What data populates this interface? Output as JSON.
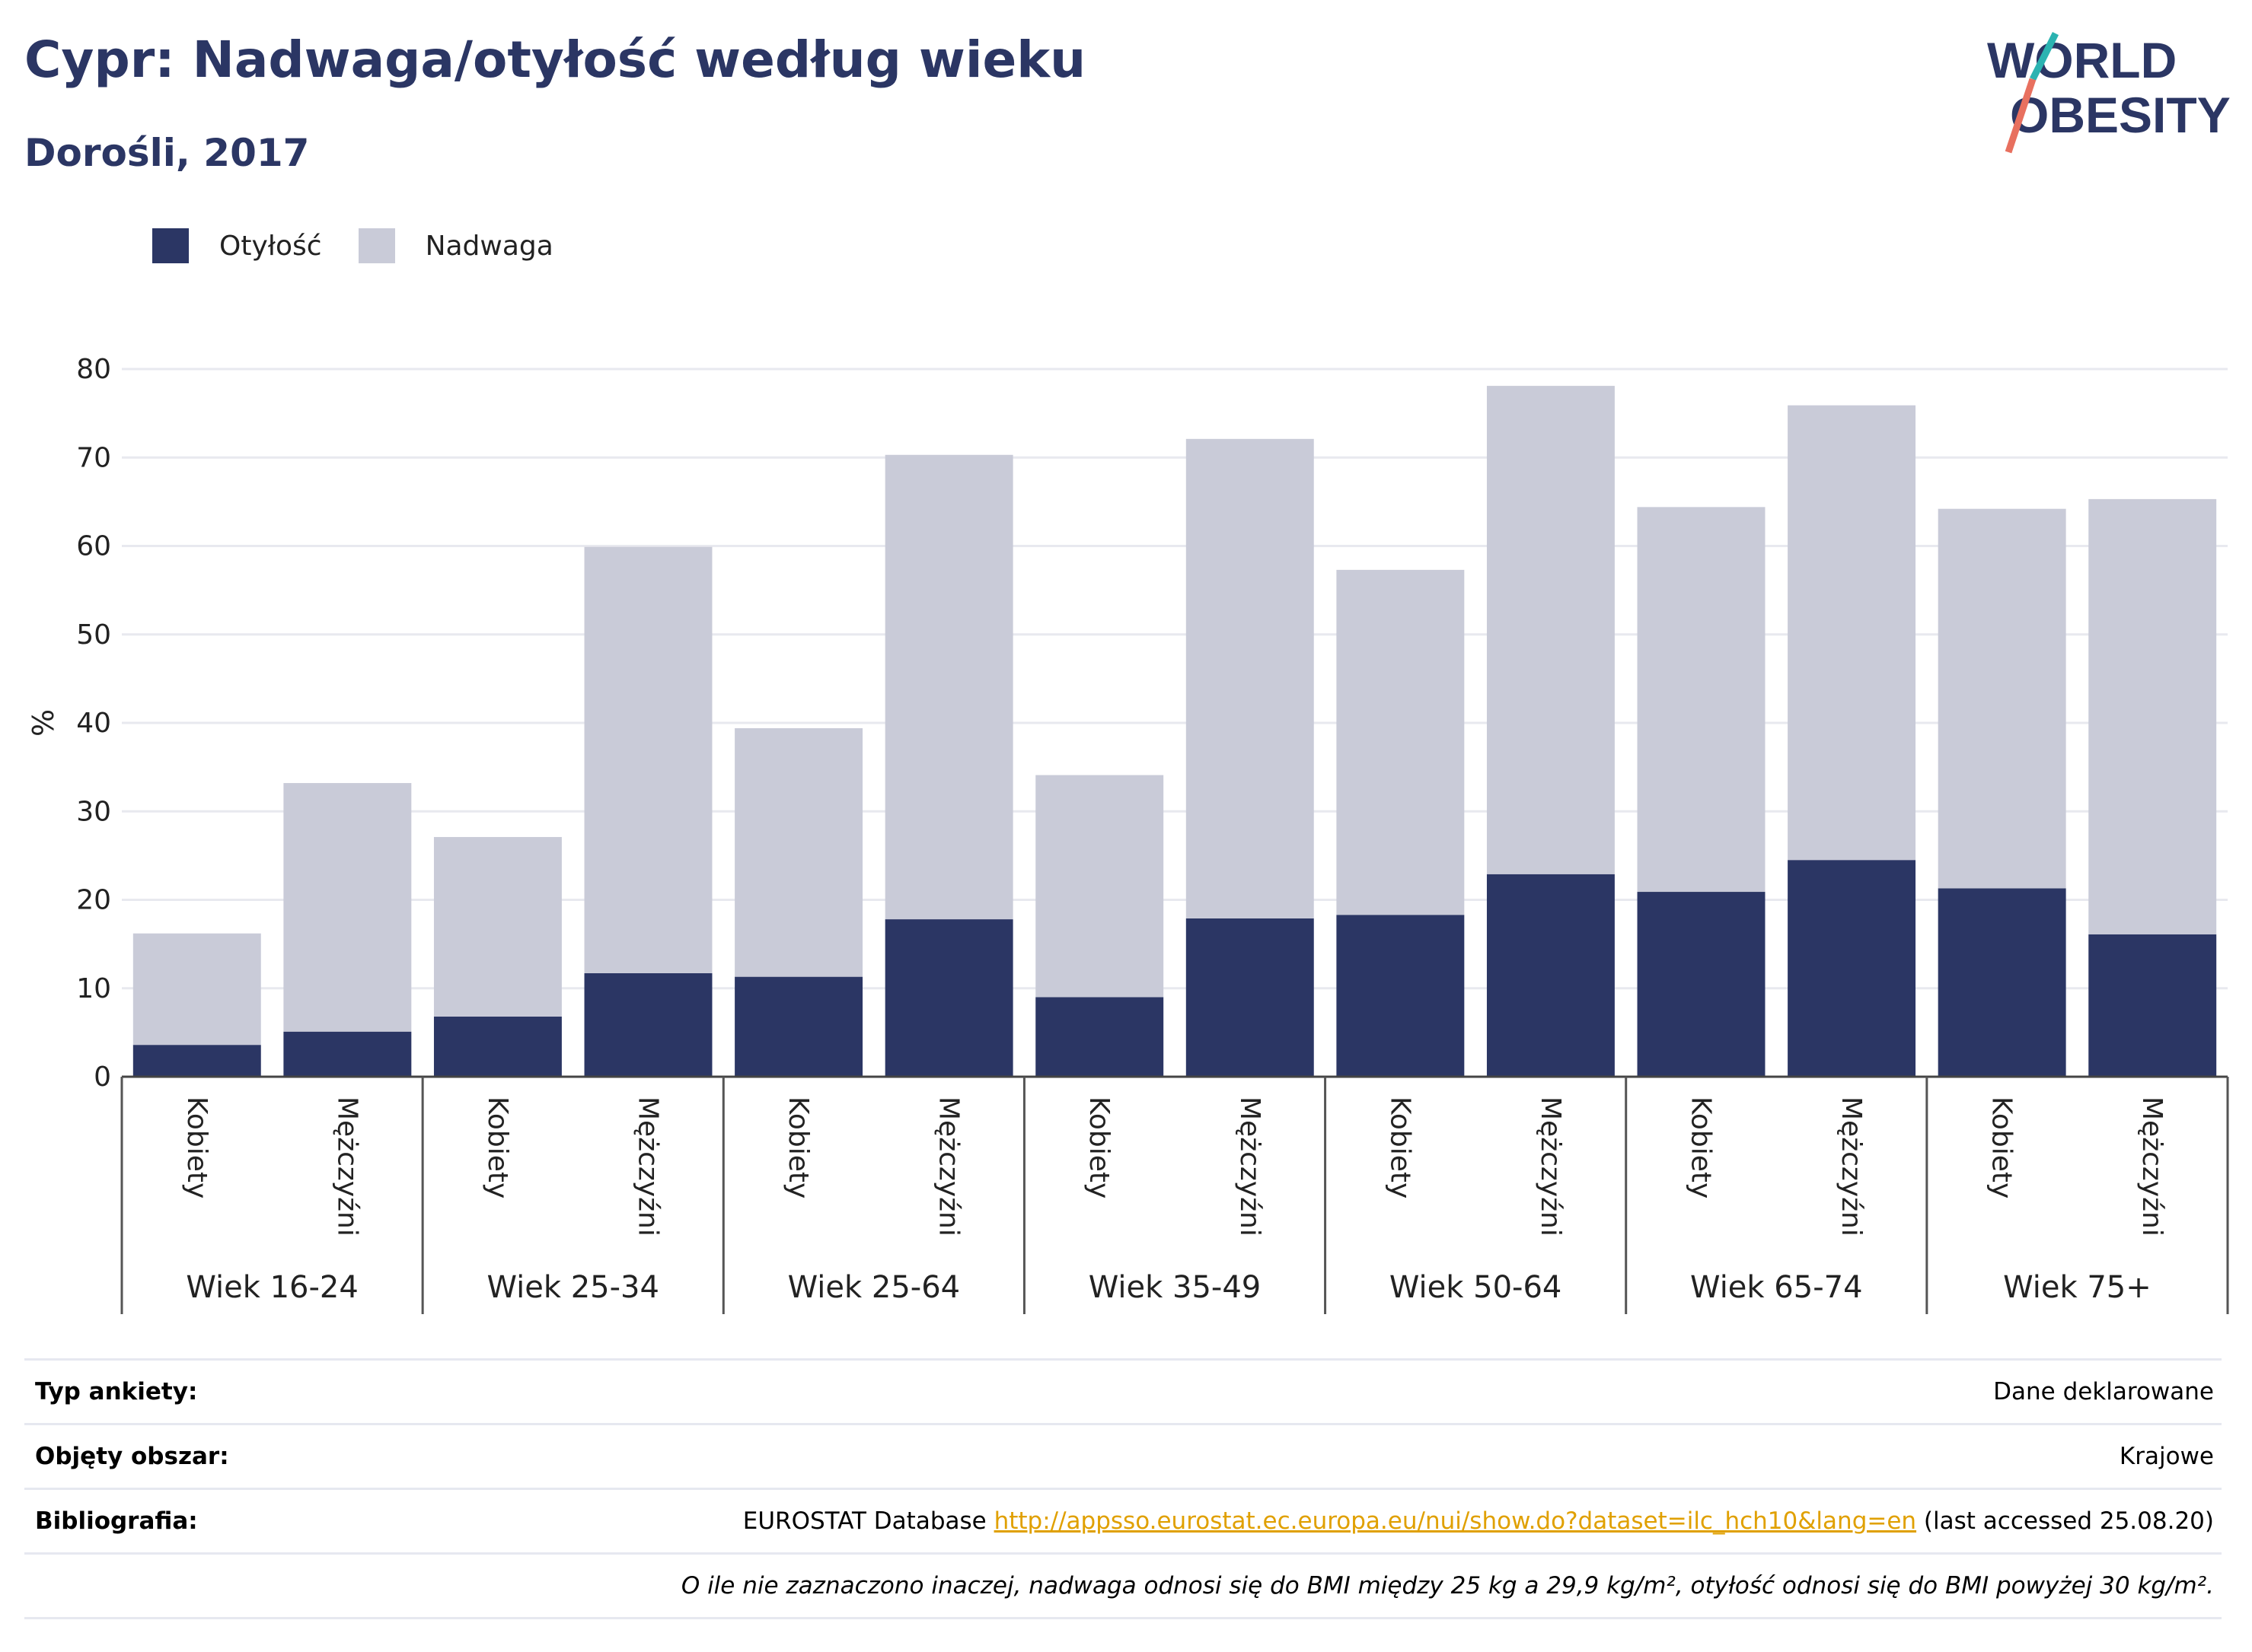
{
  "header": {
    "title": "Cypr: Nadwaga/otyłość według wieku",
    "subtitle": "Dorośli, 2017",
    "logo_line1": "WORLD",
    "logo_line2": "OBESITY"
  },
  "legend": {
    "obesity_label": "Otyłość",
    "overweight_label": "Nadwaga"
  },
  "colors": {
    "obesity": "#2b3664",
    "overweight": "#c9cbd8",
    "accent_teal": "#2bb3b1",
    "accent_coral": "#e8705f",
    "link": "#e0a000"
  },
  "chart_data": {
    "type": "bar",
    "stacked": true,
    "ylabel": "%",
    "ylim": [
      0,
      80
    ],
    "yticks": [
      0,
      10,
      20,
      30,
      40,
      50,
      60,
      70,
      80
    ],
    "grid": true,
    "legend_position": "top-left",
    "groups": [
      "Wiek 16-24",
      "Wiek 25-34",
      "Wiek 25-64",
      "Wiek 35-49",
      "Wiek 50-64",
      "Wiek 65-74",
      "Wiek 75+"
    ],
    "sexes": [
      "Kobiety",
      "Mężczyźni"
    ],
    "categories": [
      "Wiek 16-24 Kobiety",
      "Wiek 16-24 Mężczyźni",
      "Wiek 25-34 Kobiety",
      "Wiek 25-34 Mężczyźni",
      "Wiek 25-64 Kobiety",
      "Wiek 25-64 Mężczyźni",
      "Wiek 35-49 Kobiety",
      "Wiek 35-49 Mężczyźni",
      "Wiek 50-64 Kobiety",
      "Wiek 50-64 Mężczyźni",
      "Wiek 65-74 Kobiety",
      "Wiek 65-74 Mężczyźni",
      "Wiek 75+ Kobiety",
      "Wiek 75+ Mężczyźni"
    ],
    "series": [
      {
        "name": "Otyłość",
        "values": [
          3.6,
          5.1,
          6.8,
          11.7,
          11.3,
          17.8,
          9.0,
          17.9,
          18.3,
          22.9,
          20.9,
          24.5,
          21.3,
          16.1
        ]
      },
      {
        "name": "Nadwaga",
        "values": [
          12.6,
          28.1,
          20.3,
          48.2,
          28.1,
          52.5,
          25.1,
          54.2,
          39.0,
          55.2,
          43.5,
          51.4,
          42.9,
          49.2
        ]
      }
    ]
  },
  "info": {
    "survey_type_label": "Typ ankiety:",
    "survey_type_value": "Dane deklarowane",
    "coverage_label": "Objęty obszar:",
    "coverage_value": "Krajowe",
    "bibliography_label": "Bibliografia:",
    "bibliography_prefix": "EUROSTAT Database",
    "bibliography_link": "http://appsso.eurostat.ec.europa.eu/nui/show.do?dataset=ilc_hch10&lang=en",
    "bibliography_suffix": "(last accessed 25.08.20)",
    "note": "O ile nie zaznaczono inaczej, nadwaga odnosi się do BMI między 25 kg a 29,9 kg/m², otyłość odnosi się do BMI powyżej 30 kg/m²."
  }
}
